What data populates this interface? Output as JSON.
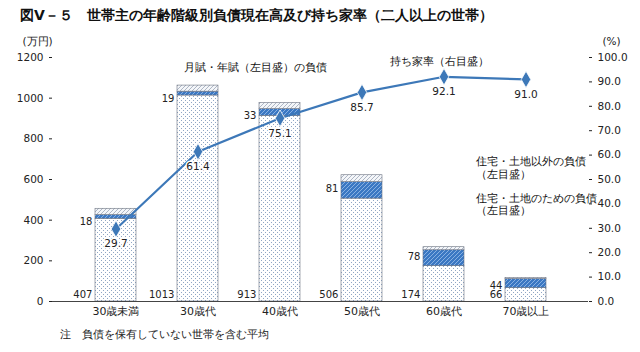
{
  "chart_data": {
    "type": "bar",
    "title": "図Ⅴ－５　世帯主の年齢階級別負債現在高及び持ち家率（二人以上の世帯）",
    "note": "注　負債を保有していない世帯を含む平均",
    "categories": [
      "30歳未満",
      "30歳代",
      "40歳代",
      "50歳代",
      "60歳代",
      "70歳以上"
    ],
    "stacked": true,
    "data_labels": true,
    "ylabel": "(万円)",
    "ylim": [
      0,
      1200
    ],
    "yticks": [
      0,
      200,
      400,
      600,
      800,
      1000,
      1200
    ],
    "y2label": "(%)",
    "y2lim": [
      0,
      100
    ],
    "y2ticks": [
      {
        "value": 0,
        "label": "0.0"
      },
      {
        "value": 10,
        "label": "10.0"
      },
      {
        "value": 20,
        "label": "20.0"
      },
      {
        "value": 30,
        "label": "30.0"
      },
      {
        "value": 40,
        "label": "40.0"
      },
      {
        "value": 50,
        "label": "50.0"
      },
      {
        "value": 60,
        "label": "60.0"
      },
      {
        "value": 70,
        "label": "70.0"
      },
      {
        "value": 80,
        "label": "80.0"
      },
      {
        "value": 90,
        "label": "90.0"
      },
      {
        "value": 100,
        "label": "100.0"
      }
    ],
    "series": [
      {
        "name": "住宅・土地のための負債（左目盛）",
        "color": "#8fa6c4",
        "values": [
          407,
          1013,
          913,
          506,
          174,
          66
        ]
      },
      {
        "name": "住宅・土地以外の負債（左目盛）",
        "color": "#3b78c3",
        "values": [
          18,
          19,
          33,
          81,
          78,
          44
        ]
      },
      {
        "name": "月賦・年賦（左目盛）の負債",
        "color": "#9aa6b8",
        "values": [
          31,
          30,
          30,
          34,
          15,
          6
        ]
      },
      {
        "name": "持ち家率（右目盛）",
        "type": "line",
        "axis": "y2",
        "marker": "diamond",
        "color": "#3d78b8",
        "values": [
          29.7,
          61.4,
          75.1,
          85.7,
          92.1,
          91.0
        ],
        "value_labels": [
          "29.7",
          "61.4",
          "75.1",
          "85.7",
          "92.1",
          "91.0"
        ]
      }
    ]
  }
}
